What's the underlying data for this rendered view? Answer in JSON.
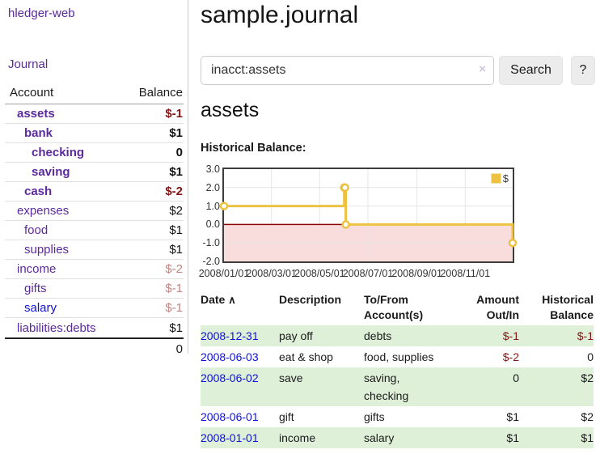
{
  "app": {
    "title": "hledger-web",
    "nav_journal": "Journal"
  },
  "colors": {
    "link_purple": "#5b2a9d",
    "link_blue": "#0f10e0",
    "negative_strong": "#871414",
    "negative_faded": "#c5827f",
    "row_stripe_green": "#dff0d8",
    "series_yellow": "#edc240",
    "zero_line_red": "#8b0000",
    "negative_area_pink": "#f9dcdc"
  },
  "sidebar": {
    "columns": {
      "account": "Account",
      "balance": "Balance"
    },
    "accounts": [
      {
        "name": "assets",
        "balance": "$-1",
        "indent": 0,
        "bold": true,
        "neg": "strong"
      },
      {
        "name": "bank",
        "balance": "$1",
        "indent": 1,
        "bold": true,
        "neg": "none"
      },
      {
        "name": "checking",
        "balance": "0",
        "indent": 2,
        "bold": true,
        "neg": "none"
      },
      {
        "name": "saving",
        "balance": "$1",
        "indent": 2,
        "bold": true,
        "neg": "none"
      },
      {
        "name": "cash",
        "balance": "$-2",
        "indent": 1,
        "bold": true,
        "neg": "strong"
      },
      {
        "name": "expenses",
        "balance": "$2",
        "indent": 0,
        "bold": false,
        "neg": "none"
      },
      {
        "name": "food",
        "balance": "$1",
        "indent": 1,
        "bold": false,
        "neg": "none"
      },
      {
        "name": "supplies",
        "balance": "$1",
        "indent": 1,
        "bold": false,
        "neg": "none"
      },
      {
        "name": "income",
        "balance": "$-2",
        "indent": 0,
        "bold": false,
        "neg": "faded"
      },
      {
        "name": "gifts",
        "balance": "$-1",
        "indent": 1,
        "bold": false,
        "neg": "faded"
      },
      {
        "name": "salary",
        "balance": "$-1",
        "indent": 1,
        "bold": false,
        "neg": "faded",
        "link_color": "blue"
      },
      {
        "name": "liabilities:debts",
        "balance": "$1",
        "indent": 0,
        "bold": false,
        "neg": "none"
      }
    ],
    "total": "0"
  },
  "header": {
    "title": "sample.journal"
  },
  "search": {
    "value": "inacct:assets",
    "clear_icon": "×",
    "button": "Search",
    "help_button": "?"
  },
  "account_page": {
    "title": "assets",
    "chart_label": "Historical Balance:"
  },
  "chart_data": {
    "type": "line",
    "step": true,
    "title": "Historical Balance:",
    "series": [
      {
        "name": "$",
        "color": "#edc240",
        "points": [
          [
            "2008/01/01",
            1
          ],
          [
            "2008/06/01",
            2
          ],
          [
            "2008/06/02",
            2
          ],
          [
            "2008/06/03",
            0
          ],
          [
            "2008/12/31",
            -1
          ]
        ]
      }
    ],
    "xlim": [
      "2008/01/01",
      "2008/12/31"
    ],
    "ylim": [
      -2,
      3
    ],
    "x_ticks": [
      "2008/01/01",
      "2008/03/01",
      "2008/05/01",
      "2008/07/01",
      "2008/09/01",
      "2008/11/01"
    ],
    "y_ticks": [
      "3.0",
      "2.0",
      "1.0",
      "0.0",
      "-1.0",
      "-2.0"
    ],
    "grid": true,
    "legend_position": "top-right",
    "negative_region_shaded": true
  },
  "register": {
    "columns": [
      "Date",
      "Description",
      "To/From Account(s)",
      "Amount Out/In",
      "Historical Balance"
    ],
    "sort_icon": "∧",
    "rows": [
      {
        "date": "2008-12-31",
        "description": "pay off",
        "accounts": "debts",
        "amount": "$-1",
        "amount_neg": true,
        "balance": "$-1",
        "balance_neg": true
      },
      {
        "date": "2008-06-03",
        "description": "eat & shop",
        "accounts": "food, supplies",
        "amount": "$-2",
        "amount_neg": true,
        "balance": "0",
        "balance_neg": false
      },
      {
        "date": "2008-06-02",
        "description": "save",
        "accounts": "saving, checking",
        "amount": "0",
        "amount_neg": false,
        "balance": "$2",
        "balance_neg": false
      },
      {
        "date": "2008-06-01",
        "description": "gift",
        "accounts": "gifts",
        "amount": "$1",
        "amount_neg": false,
        "balance": "$2",
        "balance_neg": false
      },
      {
        "date": "2008-01-01",
        "description": "income",
        "accounts": "salary",
        "amount": "$1",
        "amount_neg": false,
        "balance": "$1",
        "balance_neg": false
      }
    ]
  }
}
